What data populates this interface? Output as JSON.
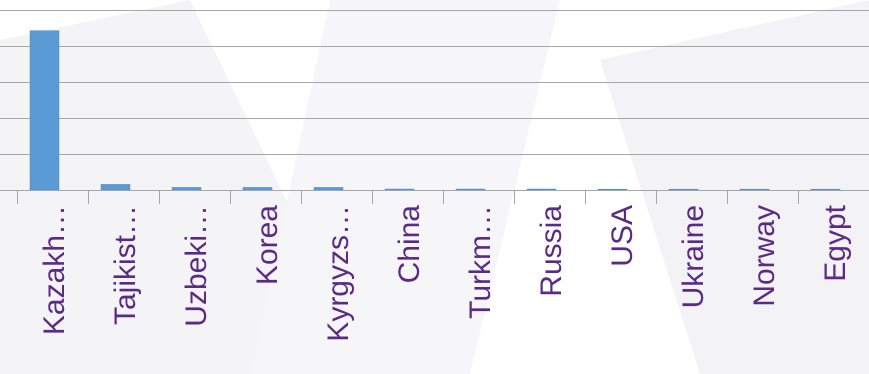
{
  "chart_data": {
    "type": "bar",
    "categories": [
      "Kazakh…",
      "Tajikist…",
      "Uzbeki…",
      "Korea",
      "Kyrgyzs…",
      "China",
      "Turkm…",
      "Russia",
      "USA",
      "Ukraine",
      "Norway",
      "Egypt"
    ],
    "values": [
      100,
      3.5,
      1.6,
      1.6,
      1.6,
      0.6,
      0.6,
      0.6,
      0.2,
      0.15,
      0.1,
      0.1
    ],
    "title": "",
    "xlabel": "",
    "ylabel": "",
    "ylim": [
      0,
      113
    ],
    "grid": true,
    "legend": "none",
    "colors": {
      "bar": "#5b9bd5",
      "bar_edge": "#4a89c4",
      "grid": "#a6a6a6",
      "axis": "#a6a6a6",
      "tick_label": "#5b2a86"
    }
  }
}
